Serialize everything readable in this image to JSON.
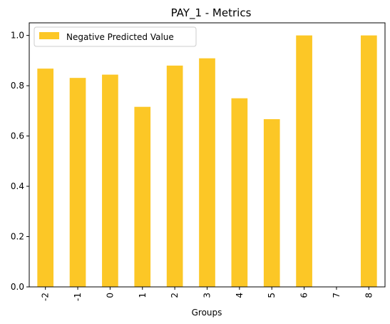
{
  "chart_data": {
    "type": "bar",
    "title": "PAY_1 - Metrics",
    "xlabel": "Groups",
    "ylabel": "",
    "categories": [
      "-2",
      "-1",
      "0",
      "1",
      "2",
      "3",
      "4",
      "5",
      "6",
      "7",
      "8"
    ],
    "series": [
      {
        "name": "Negative Predicted Value",
        "color": "#fcc726",
        "values": [
          0.868,
          0.831,
          0.844,
          0.716,
          0.88,
          0.909,
          0.75,
          0.667,
          1.0,
          null,
          1.0
        ]
      }
    ],
    "ylim": [
      0,
      1.05
    ],
    "yticks": [
      "0.0",
      "0.2",
      "0.4",
      "0.6",
      "0.8",
      "1.0"
    ],
    "ytick_values": [
      0,
      0.2,
      0.4,
      0.6,
      0.8,
      1.0
    ],
    "xtick_rotation": "vertical",
    "legend_position": "top-left",
    "grid": false
  }
}
